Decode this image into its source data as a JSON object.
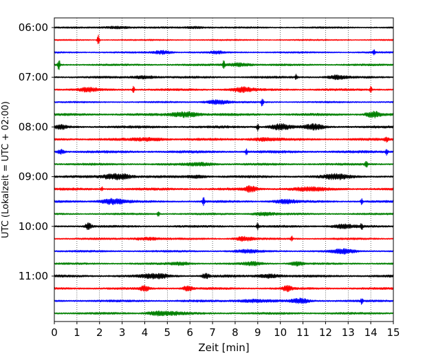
{
  "chart_data": {
    "type": "line",
    "title": "",
    "xlabel": "Zeit  [min]",
    "ylabel": "UTC (Lokalzeit = UTC + 02:00)",
    "xlim": [
      0,
      15
    ],
    "x_ticks": [
      "0",
      "1",
      "2",
      "3",
      "4",
      "5",
      "6",
      "7",
      "8",
      "9",
      "10",
      "11",
      "12",
      "13",
      "14",
      "15"
    ],
    "y_tick_labels": [
      "06:00",
      "07:00",
      "08:00",
      "09:00",
      "10:00",
      "11:00"
    ],
    "grid": "vertical dotted",
    "trace_interval_min": 15,
    "traces_per_hour": 4,
    "trace_colors": [
      "#000000",
      "#ff0000",
      "#0000ff",
      "#008000"
    ],
    "traces": [
      {
        "start": "06:00",
        "color": "#000000",
        "level": 0.35,
        "events": [
          [
            2.8,
            0.5,
            1.2
          ],
          [
            6.2,
            0.4,
            1.0
          ]
        ]
      },
      {
        "start": "06:15",
        "color": "#ff0000",
        "level": 0.3,
        "events": [
          [
            1.95,
            2.6,
            0.1
          ]
        ]
      },
      {
        "start": "06:30",
        "color": "#0000ff",
        "level": 0.35,
        "events": [
          [
            4.8,
            0.8,
            0.8
          ],
          [
            7.2,
            0.5,
            0.6
          ],
          [
            14.15,
            1.3,
            0.1
          ]
        ]
      },
      {
        "start": "06:45",
        "color": "#008000",
        "level": 0.4,
        "events": [
          [
            0.2,
            2.8,
            0.1
          ],
          [
            7.5,
            2.0,
            0.1
          ],
          [
            8.2,
            0.8,
            1.0
          ]
        ]
      },
      {
        "start": "07:00",
        "color": "#000000",
        "level": 0.45,
        "events": [
          [
            4.0,
            0.6,
            1.0
          ],
          [
            10.7,
            1.2,
            0.1
          ],
          [
            12.5,
            0.8,
            0.8
          ]
        ]
      },
      {
        "start": "07:15",
        "color": "#ff0000",
        "level": 0.45,
        "events": [
          [
            1.5,
            0.8,
            0.8
          ],
          [
            3.5,
            1.6,
            0.1
          ],
          [
            8.3,
            1.0,
            1.0
          ],
          [
            14.0,
            1.5,
            0.1
          ]
        ]
      },
      {
        "start": "07:30",
        "color": "#0000ff",
        "level": 0.35,
        "events": [
          [
            7.2,
            1.0,
            1.0
          ],
          [
            9.2,
            2.2,
            0.1
          ]
        ]
      },
      {
        "start": "07:45",
        "color": "#008000",
        "level": 0.5,
        "events": [
          [
            5.8,
            1.2,
            1.2
          ],
          [
            14.1,
            1.5,
            0.6
          ]
        ]
      },
      {
        "start": "08:00",
        "color": "#000000",
        "level": 0.5,
        "events": [
          [
            0.3,
            0.8,
            0.5
          ],
          [
            9.0,
            1.5,
            0.1
          ],
          [
            10.0,
            1.3,
            0.9
          ],
          [
            11.5,
            1.1,
            0.8
          ]
        ]
      },
      {
        "start": "08:15",
        "color": "#ff0000",
        "level": 0.5,
        "events": [
          [
            4.2,
            0.6,
            1.5
          ],
          [
            9.3,
            0.6,
            1.2
          ],
          [
            14.7,
            1.0,
            0.2
          ]
        ]
      },
      {
        "start": "08:30",
        "color": "#0000ff",
        "level": 0.5,
        "events": [
          [
            0.3,
            1.0,
            0.3
          ],
          [
            8.5,
            1.3,
            0.1
          ],
          [
            14.7,
            1.5,
            0.1
          ]
        ]
      },
      {
        "start": "08:45",
        "color": "#008000",
        "level": 0.45,
        "events": [
          [
            6.5,
            0.6,
            1.2
          ],
          [
            13.8,
            2.0,
            0.1
          ]
        ]
      },
      {
        "start": "09:00",
        "color": "#000000",
        "level": 0.5,
        "events": [
          [
            2.8,
            1.4,
            1.2
          ],
          [
            6.3,
            0.6,
            0.8
          ],
          [
            12.5,
            1.0,
            1.2
          ]
        ]
      },
      {
        "start": "09:15",
        "color": "#ff0000",
        "level": 0.5,
        "events": [
          [
            2.1,
            1.0,
            0.1
          ],
          [
            8.7,
            1.3,
            0.5
          ],
          [
            11.2,
            0.7,
            1.5
          ]
        ]
      },
      {
        "start": "09:30",
        "color": "#0000ff",
        "level": 0.45,
        "events": [
          [
            2.6,
            1.2,
            1.2
          ],
          [
            6.6,
            1.8,
            0.1
          ],
          [
            10.2,
            0.8,
            1.0
          ],
          [
            13.6,
            1.5,
            0.1
          ]
        ]
      },
      {
        "start": "09:45",
        "color": "#008000",
        "level": 0.4,
        "events": [
          [
            4.6,
            1.4,
            0.1
          ],
          [
            9.3,
            0.7,
            1.0
          ]
        ]
      },
      {
        "start": "10:00",
        "color": "#000000",
        "level": 0.45,
        "events": [
          [
            1.5,
            1.5,
            0.3
          ],
          [
            9.0,
            1.5,
            0.1
          ],
          [
            12.8,
            0.8,
            1.0
          ],
          [
            13.6,
            1.4,
            0.1
          ]
        ]
      },
      {
        "start": "10:15",
        "color": "#ff0000",
        "level": 0.4,
        "events": [
          [
            4.1,
            0.6,
            1.2
          ],
          [
            8.4,
            0.9,
            0.8
          ],
          [
            10.5,
            1.3,
            0.1
          ]
        ]
      },
      {
        "start": "10:30",
        "color": "#0000ff",
        "level": 0.4,
        "events": [
          [
            8.6,
            0.6,
            1.0
          ],
          [
            12.8,
            1.0,
            1.0
          ]
        ]
      },
      {
        "start": "10:45",
        "color": "#008000",
        "level": 0.4,
        "events": [
          [
            5.6,
            0.6,
            1.0
          ],
          [
            8.8,
            0.8,
            0.8
          ],
          [
            10.7,
            0.9,
            0.6
          ]
        ]
      },
      {
        "start": "11:00",
        "color": "#000000",
        "level": 0.5,
        "events": [
          [
            4.5,
            1.0,
            1.2
          ],
          [
            6.7,
            1.2,
            0.3
          ],
          [
            9.5,
            0.8,
            1.0
          ]
        ]
      },
      {
        "start": "11:15",
        "color": "#ff0000",
        "level": 0.45,
        "events": [
          [
            4.0,
            1.1,
            0.4
          ],
          [
            5.9,
            1.3,
            0.4
          ],
          [
            10.3,
            1.2,
            0.4
          ]
        ]
      },
      {
        "start": "11:30",
        "color": "#0000ff",
        "level": 0.45,
        "events": [
          [
            8.8,
            0.6,
            1.5
          ],
          [
            10.9,
            1.0,
            0.8
          ],
          [
            13.6,
            1.3,
            0.1
          ]
        ]
      },
      {
        "start": "11:45",
        "color": "#008000",
        "level": 0.45,
        "events": [
          [
            4.5,
            0.8,
            0.8
          ],
          [
            5.2,
            0.6,
            1.2
          ]
        ]
      }
    ]
  }
}
